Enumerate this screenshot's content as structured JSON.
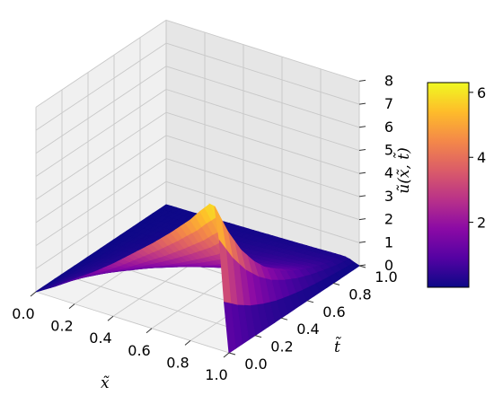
{
  "chart_data": {
    "type": "surface",
    "title": "",
    "x_label": "x̃",
    "y_label": "t̃",
    "z_label": "ũ(x̃, t̃)",
    "x_ticks": [
      "0.0",
      "0.2",
      "0.4",
      "0.6",
      "0.8",
      "1.0"
    ],
    "y_ticks": [
      "0.0",
      "0.2",
      "0.4",
      "0.6",
      "0.8",
      "1.0"
    ],
    "z_ticks": [
      "0",
      "1",
      "2",
      "3",
      "4",
      "5",
      "6",
      "7",
      "8"
    ],
    "xlim": [
      0,
      1
    ],
    "ylim": [
      0,
      1
    ],
    "zlim": [
      0,
      8
    ],
    "colormap": "plasma",
    "colorbar": {
      "range": [
        0,
        6.3
      ],
      "ticks": [
        "2",
        "4",
        "6"
      ],
      "tick_values": [
        2,
        4,
        6
      ],
      "stops": [
        "#0d0887",
        "#5402a3",
        "#8b0aa5",
        "#b93289",
        "#db5c68",
        "#f48849",
        "#febc2a",
        "#f0f921"
      ]
    },
    "surface": {
      "t_values": [
        0.0,
        0.1,
        0.2,
        0.3,
        0.4,
        0.5,
        0.6,
        0.7,
        0.8,
        0.9,
        1.0
      ],
      "peak_x": 0.92,
      "peak_values": [
        6.3,
        4.8,
        3.6,
        2.7,
        2.0,
        1.5,
        1.1,
        0.8,
        0.55,
        0.35,
        0.2
      ],
      "profile": [
        [
          0.0,
          0.0
        ],
        [
          0.1,
          0.08
        ],
        [
          0.2,
          0.17
        ],
        [
          0.3,
          0.26
        ],
        [
          0.4,
          0.36
        ],
        [
          0.5,
          0.47
        ],
        [
          0.6,
          0.58
        ],
        [
          0.7,
          0.7
        ],
        [
          0.8,
          0.83
        ],
        [
          0.85,
          0.91
        ],
        [
          0.9,
          0.98
        ],
        [
          0.92,
          1.0
        ],
        [
          0.94,
          0.9
        ],
        [
          0.96,
          0.6
        ],
        [
          0.98,
          0.25
        ],
        [
          1.0,
          0.0
        ]
      ],
      "flat_region_x": [
        1.0,
        1.0
      ]
    },
    "grid": true
  }
}
